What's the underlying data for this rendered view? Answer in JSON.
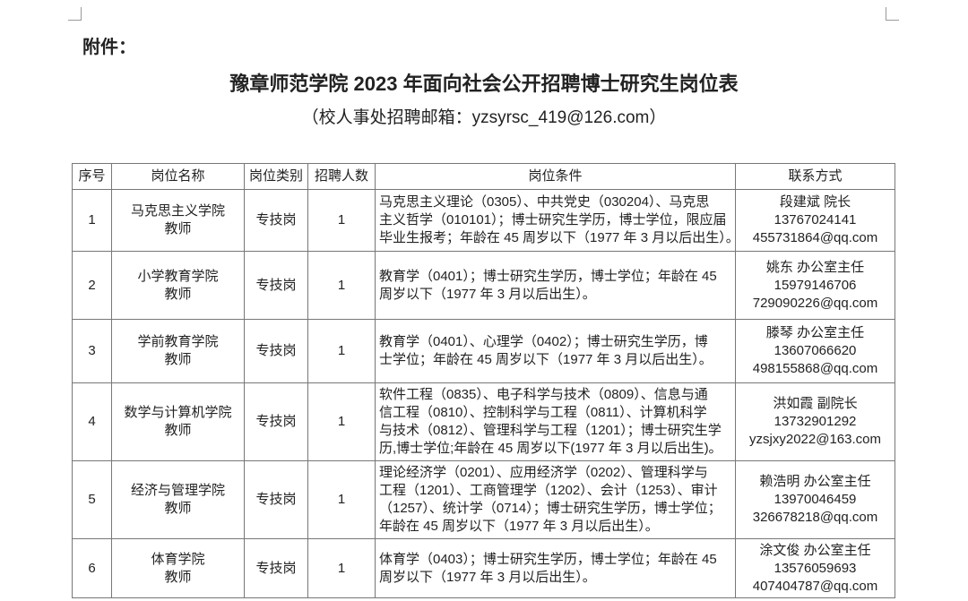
{
  "attachment_label": "附件：",
  "title": "豫章师范学院 2023 年面向社会公开招聘博士研究生岗位表",
  "subtitle": "（校人事处招聘邮箱：yzsyrsc_419@126.com）",
  "table": {
    "headers": [
      "序号",
      "岗位名称",
      "岗位类别",
      "招聘人数",
      "岗位条件",
      "联系方式"
    ],
    "rows": [
      {
        "no": "1",
        "name": [
          "马克思主义学院",
          "教师"
        ],
        "type": "专技岗",
        "count": "1",
        "conditions": [
          "马克思主义理论（0305）、中共党史（030204）、马克思",
          "主义哲学（010101）；博士研究生学历，博士学位，限应届",
          "毕业生报考；年龄在 45 周岁以下（1977 年 3 月以后出生）。"
        ],
        "contact": [
          "段建斌  院长",
          "13767024141",
          "455731864@qq.com"
        ]
      },
      {
        "no": "2",
        "name": [
          "小学教育学院",
          "教师"
        ],
        "type": "专技岗",
        "count": "1",
        "conditions": [
          "教育学（0401）；博士研究生学历，博士学位；年龄在 45",
          "周岁以下（1977 年 3 月以后出生）。"
        ],
        "contact": [
          "姚东  办公室主任",
          "15979146706",
          "729090226@qq.com"
        ]
      },
      {
        "no": "3",
        "name": [
          "学前教育学院",
          "教师"
        ],
        "type": "专技岗",
        "count": "1",
        "conditions": [
          "教育学（0401）、心理学（0402）；博士研究生学历，博",
          "士学位；年龄在 45 周岁以下（1977 年 3 月以后出生）。"
        ],
        "contact": [
          "滕琴  办公室主任",
          "13607066620",
          "498155868@qq.com"
        ]
      },
      {
        "no": "4",
        "name": [
          "数学与计算机学院",
          "教师"
        ],
        "type": "专技岗",
        "count": "1",
        "conditions": [
          "软件工程（0835）、电子科学与技术（0809）、信息与通",
          "信工程（0810）、控制科学与工程（0811）、计算机科学",
          "与技术（0812）、管理科学与工程（1201）；博士研究生学",
          "历,博士学位;年龄在 45 周岁以下(1977 年 3 月以后出生)。"
        ],
        "contact": [
          "洪如霞  副院长",
          "13732901292",
          "yzsjxy2022@163.com"
        ]
      },
      {
        "no": "5",
        "name": [
          "经济与管理学院",
          "教师"
        ],
        "type": "专技岗",
        "count": "1",
        "conditions": [
          "理论经济学（0201）、应用经济学（0202）、管理科学与",
          "工程（1201）、工商管理学（1202）、会计（1253）、审计",
          "（1257）、统计学（0714）；博士研究生学历，博士学位；",
          "年龄在 45 周岁以下（1977 年 3 月以后出生）。"
        ],
        "contact": [
          "赖浩明  办公室主任",
          "13970046459",
          "326678218@qq.com"
        ]
      },
      {
        "no": "6",
        "name": [
          "体育学院",
          "教师"
        ],
        "type": "专技岗",
        "count": "1",
        "conditions": [
          "体育学（0403）；博士研究生学历，博士学位；年龄在 45",
          "周岁以下（1977 年 3 月以后出生）。"
        ],
        "contact": [
          "涂文俊  办公室主任",
          "13576059693",
          "407404787@qq.com"
        ]
      }
    ]
  }
}
